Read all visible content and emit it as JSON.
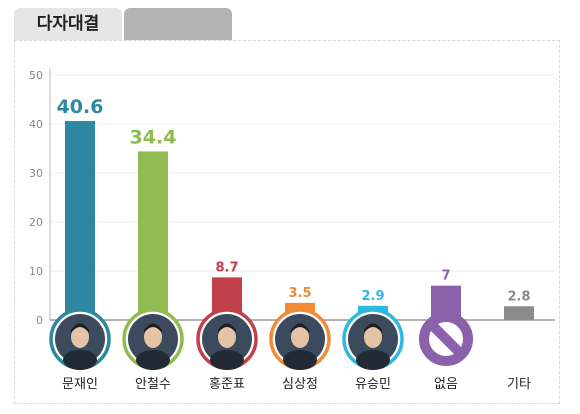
{
  "tabs": [
    {
      "label": "다자대결",
      "active": true
    },
    {
      "label": "",
      "active": false
    }
  ],
  "chart_data": {
    "type": "bar",
    "categories": [
      "문재인",
      "안철수",
      "홍준표",
      "심상정",
      "유승민",
      "없음",
      "기타"
    ],
    "values": [
      40.6,
      34.4,
      8.7,
      3.5,
      2.9,
      7,
      2.8
    ],
    "value_labels": [
      "40.6",
      "34.4",
      "8.7",
      "3.5",
      "2.9",
      "7",
      "2.8"
    ],
    "colors": [
      "#2e87a0",
      "#8fbb52",
      "#c1404a",
      "#f08a35",
      "#2fb8df",
      "#8b61ab",
      "#8a8a8a"
    ],
    "portrait_icons": [
      "portrait-icon",
      "portrait-icon",
      "portrait-icon",
      "portrait-icon",
      "portrait-icon",
      "no-symbol-icon",
      ""
    ],
    "yticks": [
      "0",
      "10",
      "20",
      "30",
      "40",
      "50"
    ],
    "ylim": [
      0,
      50
    ],
    "grid": true,
    "title": "",
    "xlabel": "",
    "ylabel": ""
  }
}
